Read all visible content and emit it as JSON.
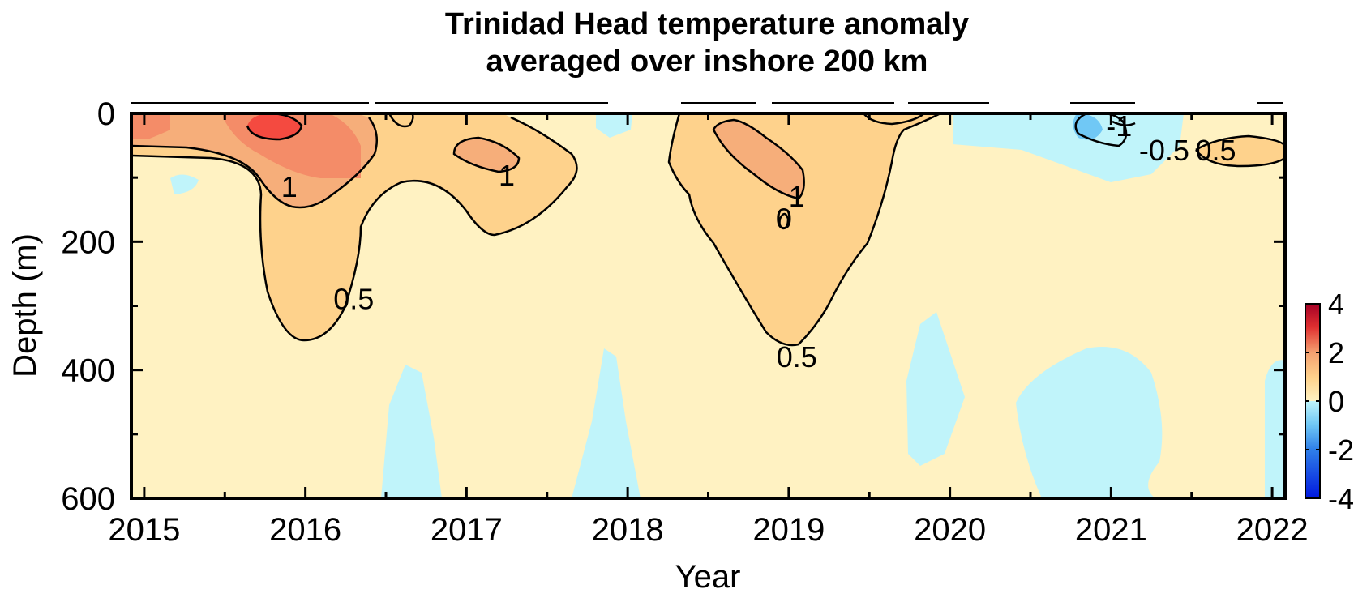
{
  "chart_data": {
    "type": "heatmap",
    "title": [
      "Trinidad Head temperature anomaly",
      "averaged over inshore 200 km"
    ],
    "xlabel": "Year",
    "ylabel": "Depth (m)",
    "xlim": [
      2014.92,
      2022.08
    ],
    "ylim": [
      600,
      0
    ],
    "x_ticks": [
      "2015",
      "2016",
      "2017",
      "2018",
      "2019",
      "2020",
      "2021",
      "2022"
    ],
    "x_tick_values": [
      2015,
      2016,
      2017,
      2018,
      2019,
      2020,
      2021,
      2022
    ],
    "y_ticks": [
      "0",
      "200",
      "400",
      "600"
    ],
    "y_tick_values": [
      0,
      200,
      400,
      600
    ],
    "colorbar": {
      "range": [
        -4,
        4
      ],
      "ticks": [
        "4",
        "2",
        "0",
        "-2",
        "-4"
      ],
      "tick_values": [
        4,
        2,
        0,
        -2,
        -4
      ]
    },
    "contour_labels": [
      {
        "text": "1",
        "x": 2015.9,
        "y": 115
      },
      {
        "text": "1",
        "x": 2017.25,
        "y": 97
      },
      {
        "text": "0.5",
        "x": 2016.3,
        "y": 290
      },
      {
        "text": "1",
        "x": 2019.05,
        "y": 130
      },
      {
        "text": "0",
        "x": 2018.97,
        "y": 165
      },
      {
        "text": "0.5",
        "x": 2019.05,
        "y": 380
      },
      {
        "text": "-1",
        "x": 2021.05,
        "y": 20
      },
      {
        "text": "-0.5",
        "x": 2021.33,
        "y": 58
      },
      {
        "text": "0.5",
        "x": 2021.65,
        "y": 58
      }
    ],
    "grid": false,
    "legend": "colorbar-right"
  }
}
